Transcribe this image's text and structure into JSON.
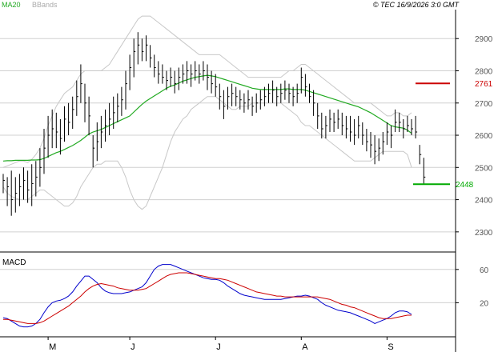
{
  "header": {
    "indicator_ma": "MA20",
    "indicator_bb": "BBands",
    "copyright": "© TEC 16/9/2026 3:0 GMT"
  },
  "colors": {
    "ma": "#22aa22",
    "bands": "#c8c8c8",
    "bars": "#000000",
    "resistance": "#cc0000",
    "support": "#00aa00",
    "macd": "#0000cc",
    "signal": "#cc0000",
    "grid": "#d0d0d0"
  },
  "chart_data": [
    {
      "type": "ohlc",
      "title": "",
      "y_ticks": [
        "2900",
        "2800",
        "2700",
        "2600",
        "2500",
        "2400",
        "2300"
      ],
      "ylim": [
        2240,
        2990
      ],
      "x_month_labels": [
        "M",
        "J",
        "J",
        "A",
        "S"
      ],
      "x_month_label_index": [
        11,
        31,
        52,
        73,
        94
      ],
      "levels": [
        {
          "label": "2761",
          "value": 2761,
          "role": "resistance"
        },
        {
          "label": "2448",
          "value": 2448,
          "role": "support"
        }
      ],
      "bars": [
        [
          2480,
          2420,
          2460
        ],
        [
          2470,
          2380,
          2440
        ],
        [
          2490,
          2350,
          2400
        ],
        [
          2470,
          2360,
          2420
        ],
        [
          2480,
          2380,
          2440
        ],
        [
          2500,
          2400,
          2460
        ],
        [
          2490,
          2390,
          2430
        ],
        [
          2510,
          2380,
          2450
        ],
        [
          2520,
          2410,
          2470
        ],
        [
          2560,
          2440,
          2500
        ],
        [
          2620,
          2480,
          2560
        ],
        [
          2660,
          2530,
          2600
        ],
        [
          2680,
          2560,
          2620
        ],
        [
          2670,
          2560,
          2610
        ],
        [
          2650,
          2540,
          2590
        ],
        [
          2690,
          2580,
          2650
        ],
        [
          2700,
          2600,
          2640
        ],
        [
          2720,
          2620,
          2680
        ],
        [
          2770,
          2660,
          2720
        ],
        [
          2820,
          2700,
          2760
        ],
        [
          2760,
          2640,
          2700
        ],
        [
          2720,
          2600,
          2660
        ],
        [
          2600,
          2500,
          2560
        ],
        [
          2640,
          2520,
          2580
        ],
        [
          2660,
          2560,
          2610
        ],
        [
          2680,
          2580,
          2630
        ],
        [
          2700,
          2600,
          2650
        ],
        [
          2720,
          2620,
          2670
        ],
        [
          2730,
          2640,
          2690
        ],
        [
          2750,
          2660,
          2710
        ],
        [
          2800,
          2680,
          2760
        ],
        [
          2850,
          2740,
          2810
        ],
        [
          2900,
          2780,
          2860
        ],
        [
          2920,
          2820,
          2880
        ],
        [
          2900,
          2830,
          2860
        ],
        [
          2910,
          2830,
          2880
        ],
        [
          2880,
          2810,
          2840
        ],
        [
          2850,
          2780,
          2810
        ],
        [
          2830,
          2760,
          2790
        ],
        [
          2820,
          2760,
          2780
        ],
        [
          2800,
          2740,
          2770
        ],
        [
          2810,
          2750,
          2780
        ],
        [
          2800,
          2730,
          2760
        ],
        [
          2810,
          2740,
          2780
        ],
        [
          2820,
          2760,
          2790
        ],
        [
          2830,
          2760,
          2800
        ],
        [
          2820,
          2750,
          2790
        ],
        [
          2830,
          2770,
          2800
        ],
        [
          2820,
          2760,
          2790
        ],
        [
          2830,
          2770,
          2800
        ],
        [
          2820,
          2740,
          2780
        ],
        [
          2800,
          2730,
          2760
        ],
        [
          2790,
          2720,
          2750
        ],
        [
          2760,
          2680,
          2720
        ],
        [
          2740,
          2650,
          2690
        ],
        [
          2750,
          2680,
          2720
        ],
        [
          2760,
          2690,
          2730
        ],
        [
          2750,
          2690,
          2720
        ],
        [
          2740,
          2680,
          2710
        ],
        [
          2730,
          2670,
          2700
        ],
        [
          2740,
          2680,
          2710
        ],
        [
          2720,
          2660,
          2690
        ],
        [
          2730,
          2670,
          2700
        ],
        [
          2740,
          2680,
          2710
        ],
        [
          2750,
          2690,
          2720
        ],
        [
          2760,
          2700,
          2730
        ],
        [
          2770,
          2700,
          2740
        ],
        [
          2750,
          2690,
          2720
        ],
        [
          2760,
          2700,
          2730
        ],
        [
          2770,
          2710,
          2740
        ],
        [
          2760,
          2700,
          2730
        ],
        [
          2750,
          2690,
          2720
        ],
        [
          2760,
          2700,
          2730
        ],
        [
          2810,
          2730,
          2780
        ],
        [
          2790,
          2720,
          2750
        ],
        [
          2760,
          2700,
          2720
        ],
        [
          2740,
          2660,
          2700
        ],
        [
          2700,
          2620,
          2660
        ],
        [
          2670,
          2590,
          2620
        ],
        [
          2660,
          2590,
          2630
        ],
        [
          2680,
          2610,
          2650
        ],
        [
          2670,
          2610,
          2640
        ],
        [
          2680,
          2620,
          2650
        ],
        [
          2670,
          2600,
          2630
        ],
        [
          2660,
          2590,
          2620
        ],
        [
          2660,
          2580,
          2610
        ],
        [
          2650,
          2570,
          2600
        ],
        [
          2660,
          2590,
          2630
        ],
        [
          2640,
          2570,
          2600
        ],
        [
          2620,
          2550,
          2580
        ],
        [
          2610,
          2530,
          2570
        ],
        [
          2600,
          2510,
          2550
        ],
        [
          2590,
          2520,
          2560
        ],
        [
          2610,
          2540,
          2580
        ],
        [
          2640,
          2570,
          2610
        ],
        [
          2630,
          2560,
          2600
        ],
        [
          2680,
          2610,
          2640
        ],
        [
          2670,
          2610,
          2640
        ],
        [
          2650,
          2590,
          2620
        ],
        [
          2660,
          2610,
          2630
        ],
        [
          2650,
          2600,
          2620
        ],
        [
          2660,
          2590,
          2610
        ],
        [
          2570,
          2510,
          2540
        ],
        [
          2530,
          2450,
          2470
        ]
      ],
      "ma20": [
        2520,
        2521,
        2521,
        2522,
        2522,
        2522,
        2522,
        2523,
        2523,
        2524,
        2528,
        2534,
        2540,
        2546,
        2550,
        2556,
        2562,
        2568,
        2576,
        2584,
        2594,
        2604,
        2610,
        2614,
        2618,
        2624,
        2630,
        2636,
        2642,
        2648,
        2654,
        2660,
        2672,
        2684,
        2696,
        2706,
        2714,
        2722,
        2730,
        2738,
        2746,
        2752,
        2756,
        2762,
        2768,
        2772,
        2776,
        2780,
        2782,
        2784,
        2786,
        2784,
        2782,
        2778,
        2774,
        2770,
        2766,
        2762,
        2758,
        2754,
        2750,
        2746,
        2744,
        2742,
        2742,
        2742,
        2742,
        2742,
        2742,
        2744,
        2744,
        2742,
        2742,
        2742,
        2740,
        2736,
        2732,
        2728,
        2724,
        2720,
        2716,
        2712,
        2708,
        2704,
        2700,
        2696,
        2692,
        2688,
        2682,
        2676,
        2670,
        2662,
        2654,
        2646,
        2638,
        2630,
        2626,
        2624,
        2622,
        2616,
        2606
      ],
      "bb_upper": [
        2500,
        2505,
        2510,
        2515,
        2520,
        2520,
        2515,
        2525,
        2540,
        2560,
        2590,
        2630,
        2660,
        2690,
        2710,
        2730,
        2740,
        2750,
        2770,
        2790,
        2800,
        2800,
        2800,
        2800,
        2800,
        2810,
        2820,
        2840,
        2860,
        2880,
        2900,
        2920,
        2940,
        2960,
        2970,
        2970,
        2970,
        2960,
        2950,
        2940,
        2930,
        2920,
        2910,
        2900,
        2890,
        2880,
        2870,
        2860,
        2850,
        2850,
        2850,
        2850,
        2850,
        2850,
        2840,
        2830,
        2820,
        2810,
        2800,
        2790,
        2780,
        2780,
        2780,
        2780,
        2780,
        2780,
        2780,
        2780,
        2780,
        2790,
        2800,
        2800,
        2810,
        2820,
        2820,
        2810,
        2800,
        2790,
        2780,
        2770,
        2760,
        2750,
        2740,
        2730,
        2720,
        2710,
        2700,
        2700,
        2700,
        2700,
        2700,
        2690,
        2680,
        2670,
        2660,
        2660,
        2670,
        2670,
        2660,
        2660,
        2670
      ],
      "bb_lower": [
        2440,
        2420,
        2410,
        2405,
        2400,
        2400,
        2400,
        2410,
        2420,
        2430,
        2430,
        2420,
        2410,
        2400,
        2390,
        2380,
        2380,
        2390,
        2410,
        2440,
        2460,
        2480,
        2500,
        2510,
        2510,
        2520,
        2520,
        2520,
        2520,
        2500,
        2470,
        2430,
        2400,
        2380,
        2370,
        2380,
        2410,
        2440,
        2470,
        2500,
        2540,
        2580,
        2610,
        2630,
        2650,
        2660,
        2680,
        2690,
        2700,
        2710,
        2720,
        2720,
        2720,
        2710,
        2700,
        2690,
        2680,
        2680,
        2690,
        2690,
        2690,
        2700,
        2700,
        2700,
        2700,
        2700,
        2700,
        2700,
        2700,
        2690,
        2680,
        2670,
        2660,
        2640,
        2630,
        2630,
        2620,
        2610,
        2600,
        2590,
        2580,
        2570,
        2560,
        2550,
        2540,
        2530,
        2520,
        2520,
        2520,
        2520,
        2520,
        2530,
        2540,
        2550,
        2550,
        2550,
        2550,
        2550,
        2550,
        2540,
        2500
      ]
    },
    {
      "type": "line",
      "title": "MACD",
      "y_ticks": [
        "60",
        "20"
      ],
      "ylim": [
        -20,
        80
      ],
      "series": [
        {
          "name": "",
          "role": "macd",
          "values": [
            2,
            1,
            -2,
            -5,
            -8,
            -9,
            -9,
            -8,
            -5,
            0,
            8,
            15,
            20,
            22,
            23,
            25,
            28,
            33,
            40,
            46,
            52,
            52,
            48,
            44,
            38,
            34,
            32,
            31,
            31,
            31,
            32,
            33,
            35,
            37,
            39,
            44,
            52,
            60,
            64,
            66,
            66,
            66,
            64,
            62,
            60,
            58,
            56,
            54,
            52,
            50,
            49,
            48,
            48,
            47,
            44,
            40,
            37,
            34,
            31,
            29,
            28,
            27,
            26,
            25,
            24,
            24,
            24,
            24,
            24,
            25,
            26,
            27,
            28,
            28,
            29,
            28,
            26,
            24,
            20,
            17,
            15,
            13,
            11,
            10,
            9,
            8,
            6,
            4,
            2,
            0,
            -2,
            -5,
            -3,
            -1,
            1,
            4,
            8,
            10,
            10,
            9,
            6
          ]
        },
        {
          "name": "",
          "role": "signal",
          "values": [
            0,
            0,
            -1,
            -2,
            -3,
            -4,
            -5,
            -5,
            -5,
            -4,
            -2,
            1,
            4,
            7,
            10,
            13,
            16,
            20,
            24,
            28,
            33,
            37,
            40,
            42,
            43,
            42,
            41,
            40,
            38,
            37,
            36,
            35,
            35,
            35,
            36,
            37,
            40,
            43,
            46,
            49,
            52,
            54,
            55,
            56,
            56,
            56,
            55,
            54,
            53,
            52,
            51,
            50,
            49,
            49,
            48,
            47,
            45,
            43,
            41,
            39,
            37,
            35,
            33,
            32,
            31,
            30,
            29,
            28,
            28,
            27,
            27,
            27,
            27,
            27,
            27,
            27,
            27,
            27,
            26,
            25,
            24,
            22,
            20,
            18,
            17,
            15,
            14,
            12,
            10,
            8,
            6,
            4,
            2,
            1,
            1,
            1,
            2,
            3,
            4,
            5,
            5
          ]
        }
      ]
    }
  ]
}
